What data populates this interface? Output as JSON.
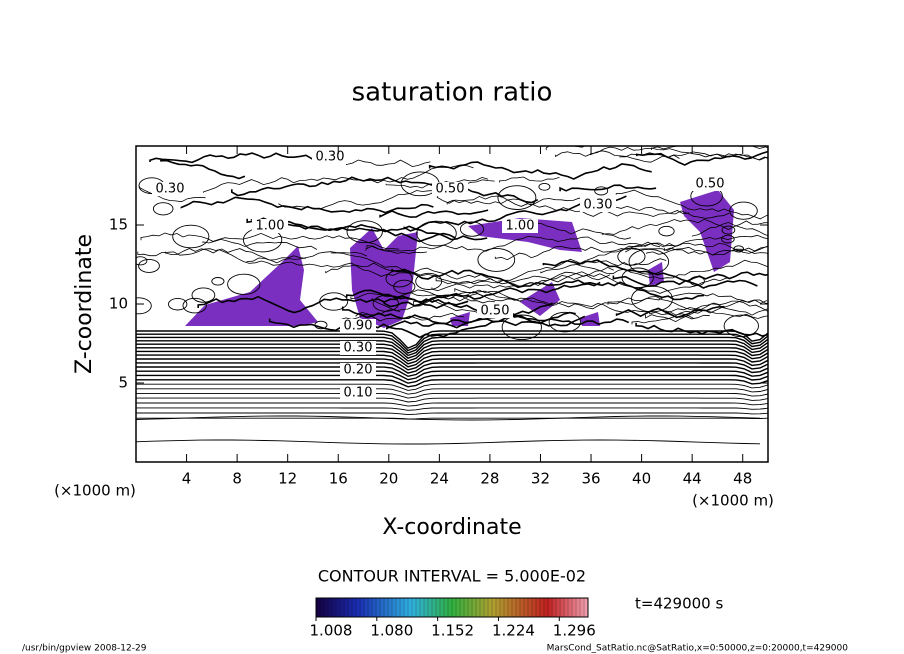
{
  "chart_data": {
    "type": "contour",
    "title": "saturation ratio",
    "x_label": "X-coordinate",
    "y_label": "Z-coordinate",
    "x_unit": "(×1000 m)",
    "y_unit": "(×1000 m)",
    "xlim": [
      0,
      50
    ],
    "xticks": [
      4,
      8,
      12,
      16,
      20,
      24,
      28,
      32,
      36,
      40,
      44,
      48
    ],
    "ylim": [
      0,
      20
    ],
    "yticks": [
      5,
      10,
      15
    ],
    "contour_labels": [
      "0.10",
      "0.20",
      "0.30",
      "0.50",
      "0.90",
      "1.00"
    ],
    "contour_interval": "CONTOUR INTERVAL = 5.000E-02",
    "fill_color": "#7a2fc0",
    "colorbar": {
      "lim": [
        1.008,
        1.33
      ],
      "ticks": [
        1.008,
        {
          "value": 1.08,
          "label": "1.080"
        },
        1.152,
        1.224,
        1.296
      ]
    },
    "time_note": "t=429000 s",
    "footer_left": "/usr/bin/gpview   2008-12-29",
    "footer_right": "MarsCond_SatRatio.nc@SatRatio,x=0:50000,z=0:20000,t=429000"
  }
}
